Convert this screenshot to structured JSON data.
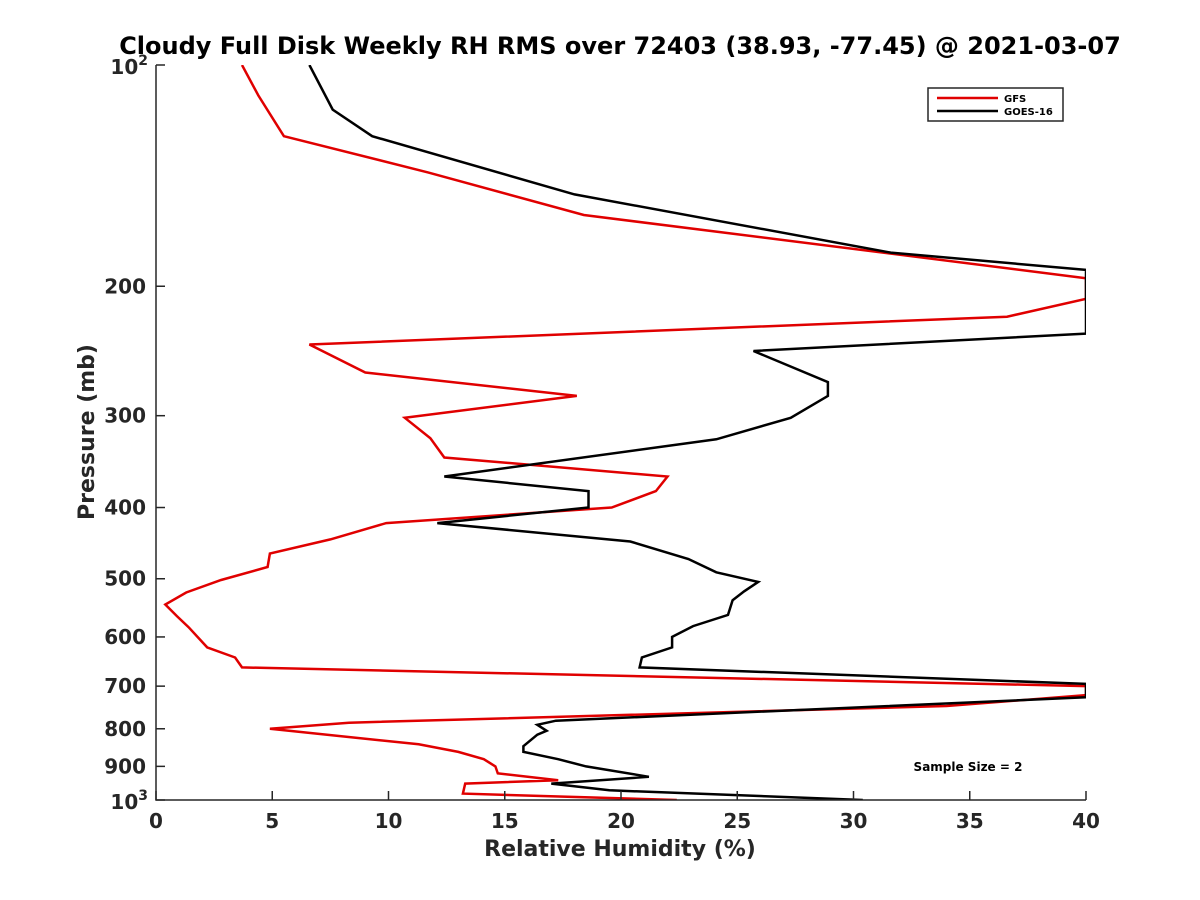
{
  "chart_data": {
    "type": "line",
    "title": "Cloudy Full Disk Weekly RH RMS over 72403 (38.93, -77.45) @ 2021-03-07",
    "xlabel": "Relative Humidity (%)",
    "ylabel": "Pressure (mb)",
    "xlim": [
      0,
      40
    ],
    "ylim": [
      100,
      1000
    ],
    "y_scale": "log",
    "y_reversed": true,
    "x_ticks": [
      0,
      5,
      10,
      15,
      20,
      25,
      30,
      35,
      40
    ],
    "x_tick_labels": [
      "0",
      "5",
      "10",
      "15",
      "20",
      "25",
      "30",
      "35",
      "40"
    ],
    "y_ticks": [
      {
        "value": 100,
        "base": "10",
        "exp": "2"
      },
      {
        "value": 200,
        "label": "200"
      },
      {
        "value": 300,
        "label": "300"
      },
      {
        "value": 400,
        "label": "400"
      },
      {
        "value": 500,
        "label": "500"
      },
      {
        "value": 600,
        "label": "600"
      },
      {
        "value": 700,
        "label": "700"
      },
      {
        "value": 800,
        "label": "800"
      },
      {
        "value": 900,
        "label": "900"
      },
      {
        "value": 1000,
        "base": "10",
        "exp": "3"
      }
    ],
    "grid": false,
    "legend_position": "top-right",
    "annotation": "Sample Size = 2",
    "series": [
      {
        "name": "GFS",
        "color": "#e00000",
        "points": [
          [
            3.7,
            100
          ],
          [
            4.4,
            110
          ],
          [
            5.5,
            125
          ],
          [
            11.7,
            140
          ],
          [
            18.4,
            160
          ],
          [
            40,
            195
          ],
          [
            40,
            208
          ],
          [
            36.6,
            220
          ],
          [
            6.6,
            240
          ],
          [
            9.0,
            262
          ],
          [
            18.1,
            282
          ],
          [
            10.7,
            302
          ],
          [
            11.8,
            322
          ],
          [
            12.4,
            342
          ],
          [
            22.0,
            363
          ],
          [
            21.5,
            380
          ],
          [
            19.6,
            400
          ],
          [
            9.9,
            420
          ],
          [
            7.5,
            442
          ],
          [
            4.9,
            462
          ],
          [
            4.8,
            482
          ],
          [
            2.8,
            502
          ],
          [
            1.3,
            522
          ],
          [
            0.4,
            542
          ],
          [
            0.9,
            562
          ],
          [
            1.4,
            582
          ],
          [
            2.2,
            620
          ],
          [
            3.4,
            640
          ],
          [
            3.7,
            660
          ],
          [
            40,
            700
          ],
          [
            40,
            720
          ],
          [
            34.0,
            745
          ],
          [
            8.3,
            785
          ],
          [
            4.9,
            800
          ],
          [
            11.3,
            840
          ],
          [
            13.0,
            860
          ],
          [
            14.1,
            880
          ],
          [
            14.6,
            900
          ],
          [
            14.7,
            920
          ],
          [
            17.3,
            940
          ],
          [
            13.3,
            950
          ],
          [
            13.2,
            980
          ],
          [
            22.4,
            1000
          ]
        ]
      },
      {
        "name": "GOES-16",
        "color": "#000000",
        "points": [
          [
            6.6,
            100
          ],
          [
            7.6,
            115
          ],
          [
            9.3,
            125
          ],
          [
            18.0,
            150
          ],
          [
            31.6,
            180
          ],
          [
            40,
            190
          ],
          [
            40,
            232
          ],
          [
            25.7,
            245
          ],
          [
            28.9,
            270
          ],
          [
            28.9,
            282
          ],
          [
            27.3,
            302
          ],
          [
            24.1,
            323
          ],
          [
            12.4,
            363
          ],
          [
            18.6,
            380
          ],
          [
            18.6,
            400
          ],
          [
            12.1,
            420
          ],
          [
            20.4,
            445
          ],
          [
            22.9,
            470
          ],
          [
            24.1,
            490
          ],
          [
            25.9,
            505
          ],
          [
            25.3,
            520
          ],
          [
            24.8,
            535
          ],
          [
            24.6,
            560
          ],
          [
            23.1,
            580
          ],
          [
            22.2,
            600
          ],
          [
            22.2,
            620
          ],
          [
            20.9,
            640
          ],
          [
            20.8,
            660
          ],
          [
            40,
            695
          ],
          [
            40,
            725
          ],
          [
            17.2,
            780
          ],
          [
            16.4,
            790
          ],
          [
            16.8,
            805
          ],
          [
            16.4,
            815
          ],
          [
            15.8,
            845
          ],
          [
            15.8,
            860
          ],
          [
            17.3,
            880
          ],
          [
            18.5,
            900
          ],
          [
            21.2,
            930
          ],
          [
            17.0,
            950
          ],
          [
            19.5,
            970
          ],
          [
            30.4,
            1000
          ]
        ]
      }
    ]
  }
}
